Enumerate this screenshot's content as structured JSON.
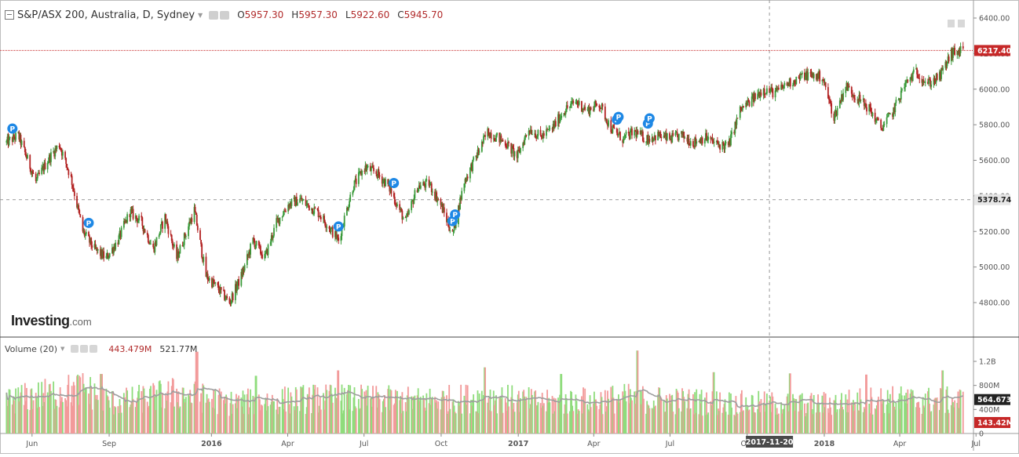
{
  "header": {
    "title": "S&P/ASX 200, Australia, D, Sydney",
    "open_label": "O",
    "open": "5957.30",
    "high_label": "H",
    "high": "5957.30",
    "low_label": "L",
    "low": "5922.60",
    "close_label": "C",
    "close": "5945.70"
  },
  "volume_header": {
    "label": "Volume (20)",
    "value1": "443.479M",
    "value2": "521.77M"
  },
  "logo": {
    "main": "Investing",
    "suffix": ".com"
  },
  "colors": {
    "up": "#3a9a3a",
    "down": "#b22222",
    "vol_up": "#8fdc7c",
    "vol_down": "#f29a9a",
    "ma": "#9e9e9e",
    "price_line": "#c62828",
    "badge": "#1e88e5",
    "axis": "#555555"
  },
  "chart_data": [
    {
      "type": "candlestick",
      "title": "S&P/ASX 200, Australia, D, Sydney",
      "x_ticks": [
        "Jun",
        "Sep",
        "2016",
        "Apr",
        "Jul",
        "Oct",
        "2017",
        "Apr",
        "Jul",
        "Oct",
        "2018",
        "Apr",
        "Jul"
      ],
      "y_ticks": [
        "6400.00",
        "6200.00",
        "6000.00",
        "5800.00",
        "5600.00",
        "5400.00",
        "5200.00",
        "5000.00",
        "4800.00"
      ],
      "ylim": [
        4650,
        6450
      ],
      "current_price_label": "6217.40",
      "crosshair_price_label": "5378.74",
      "crosshair_date_label": "2017-11-20",
      "close_series": [
        [
          "2015-05-25",
          5700
        ],
        [
          "2015-06-08",
          5740
        ],
        [
          "2015-06-29",
          5480
        ],
        [
          "2015-07-13",
          5600
        ],
        [
          "2015-07-27",
          5690
        ],
        [
          "2015-08-10",
          5500
        ],
        [
          "2015-08-24",
          5200
        ],
        [
          "2015-09-07",
          5100
        ],
        [
          "2015-09-21",
          5050
        ],
        [
          "2015-10-05",
          5150
        ],
        [
          "2015-10-19",
          5310
        ],
        [
          "2015-11-02",
          5250
        ],
        [
          "2015-11-16",
          5100
        ],
        [
          "2015-11-30",
          5280
        ],
        [
          "2015-12-14",
          5050
        ],
        [
          "2016-01-04",
          5320
        ],
        [
          "2016-01-18",
          4950
        ],
        [
          "2016-02-01",
          4880
        ],
        [
          "2016-02-15",
          4800
        ],
        [
          "2016-03-01",
          4960
        ],
        [
          "2016-03-14",
          5150
        ],
        [
          "2016-03-28",
          5050
        ],
        [
          "2016-04-11",
          5250
        ],
        [
          "2016-04-25",
          5350
        ],
        [
          "2016-05-09",
          5380
        ],
        [
          "2016-06-01",
          5300
        ],
        [
          "2016-06-24",
          5150
        ],
        [
          "2016-07-11",
          5450
        ],
        [
          "2016-07-25",
          5560
        ],
        [
          "2016-08-08",
          5530
        ],
        [
          "2016-08-22",
          5460
        ],
        [
          "2016-09-12",
          5250
        ],
        [
          "2016-09-26",
          5450
        ],
        [
          "2016-10-10",
          5470
        ],
        [
          "2016-10-24",
          5350
        ],
        [
          "2016-11-07",
          5180
        ],
        [
          "2016-11-21",
          5480
        ],
        [
          "2016-12-05",
          5620
        ],
        [
          "2016-12-19",
          5760
        ],
        [
          "2017-01-09",
          5700
        ],
        [
          "2017-01-23",
          5620
        ],
        [
          "2017-02-06",
          5780
        ],
        [
          "2017-02-20",
          5730
        ],
        [
          "2017-03-06",
          5780
        ],
        [
          "2017-03-20",
          5880
        ],
        [
          "2017-04-03",
          5930
        ],
        [
          "2017-04-17",
          5880
        ],
        [
          "2017-05-01",
          5920
        ],
        [
          "2017-05-15",
          5780
        ],
        [
          "2017-05-29",
          5720
        ],
        [
          "2017-06-12",
          5760
        ],
        [
          "2017-06-26",
          5720
        ],
        [
          "2017-07-10",
          5740
        ],
        [
          "2017-07-24",
          5720
        ],
        [
          "2017-08-07",
          5740
        ],
        [
          "2017-08-21",
          5700
        ],
        [
          "2017-09-04",
          5730
        ],
        [
          "2017-09-18",
          5690
        ],
        [
          "2017-10-02",
          5680
        ],
        [
          "2017-10-16",
          5880
        ],
        [
          "2017-10-30",
          5940
        ],
        [
          "2017-11-13",
          6000
        ],
        [
          "2017-11-27",
          5980
        ],
        [
          "2017-12-11",
          6030
        ],
        [
          "2018-01-02",
          6080
        ],
        [
          "2018-01-22",
          6070
        ],
        [
          "2018-02-05",
          5840
        ],
        [
          "2018-02-19",
          6020
        ],
        [
          "2018-03-05",
          5950
        ],
        [
          "2018-03-19",
          5890
        ],
        [
          "2018-04-02",
          5780
        ],
        [
          "2018-04-16",
          5870
        ],
        [
          "2018-04-30",
          6020
        ],
        [
          "2018-05-14",
          6100
        ],
        [
          "2018-05-28",
          6030
        ],
        [
          "2018-06-11",
          6070
        ],
        [
          "2018-06-25",
          6200
        ],
        [
          "2018-07-09",
          6217.4
        ]
      ],
      "markers": [
        {
          "date": "2015-06-01",
          "label": "P"
        },
        {
          "date": "2015-08-31",
          "label": "P"
        },
        {
          "date": "2016-06-24",
          "label": "P"
        },
        {
          "date": "2016-08-29",
          "label": "P"
        },
        {
          "date": "2016-11-07",
          "label": "P"
        },
        {
          "date": "2016-11-10",
          "label": "P"
        },
        {
          "date": "2017-05-22",
          "label": "P"
        },
        {
          "date": "2017-05-24",
          "label": "P"
        },
        {
          "date": "2017-06-28",
          "label": "P"
        },
        {
          "date": "2017-06-30",
          "label": "P"
        }
      ]
    },
    {
      "type": "bar",
      "title": "Volume (20)",
      "y_ticks": [
        "1.2B",
        "800M",
        "400M",
        "0"
      ],
      "ylim": [
        0,
        1500
      ],
      "unit": "M",
      "current_volume_label": "143.42M",
      "ma_label": "564.673M",
      "ma_period": 20,
      "profile": [
        [
          "2015-05-25",
          560
        ],
        [
          "2015-08-24",
          760
        ],
        [
          "2015-10-01",
          520
        ],
        [
          "2015-12-15",
          690
        ],
        [
          "2016-02-15",
          520
        ],
        [
          "2016-06-01",
          600
        ],
        [
          "2016-10-01",
          560
        ],
        [
          "2016-12-20",
          620
        ],
        [
          "2017-03-01",
          520
        ],
        [
          "2017-06-01",
          600
        ],
        [
          "2017-10-01",
          520
        ],
        [
          "2018-01-10",
          490
        ],
        [
          "2018-04-01",
          580
        ],
        [
          "2018-06-01",
          560
        ],
        [
          "2018-07-09",
          560
        ]
      ],
      "spikes": [
        [
          "2016-01-07",
          1360
        ],
        [
          "2017-06-16",
          1380
        ],
        [
          "2015-09-15",
          990
        ],
        [
          "2016-03-18",
          960
        ],
        [
          "2016-06-24",
          1050
        ],
        [
          "2016-12-16",
          1100
        ],
        [
          "2017-03-17",
          990
        ],
        [
          "2017-09-15",
          1020
        ],
        [
          "2017-12-15",
          1000
        ],
        [
          "2018-03-16",
          980
        ],
        [
          "2018-06-15",
          1050
        ]
      ]
    }
  ]
}
